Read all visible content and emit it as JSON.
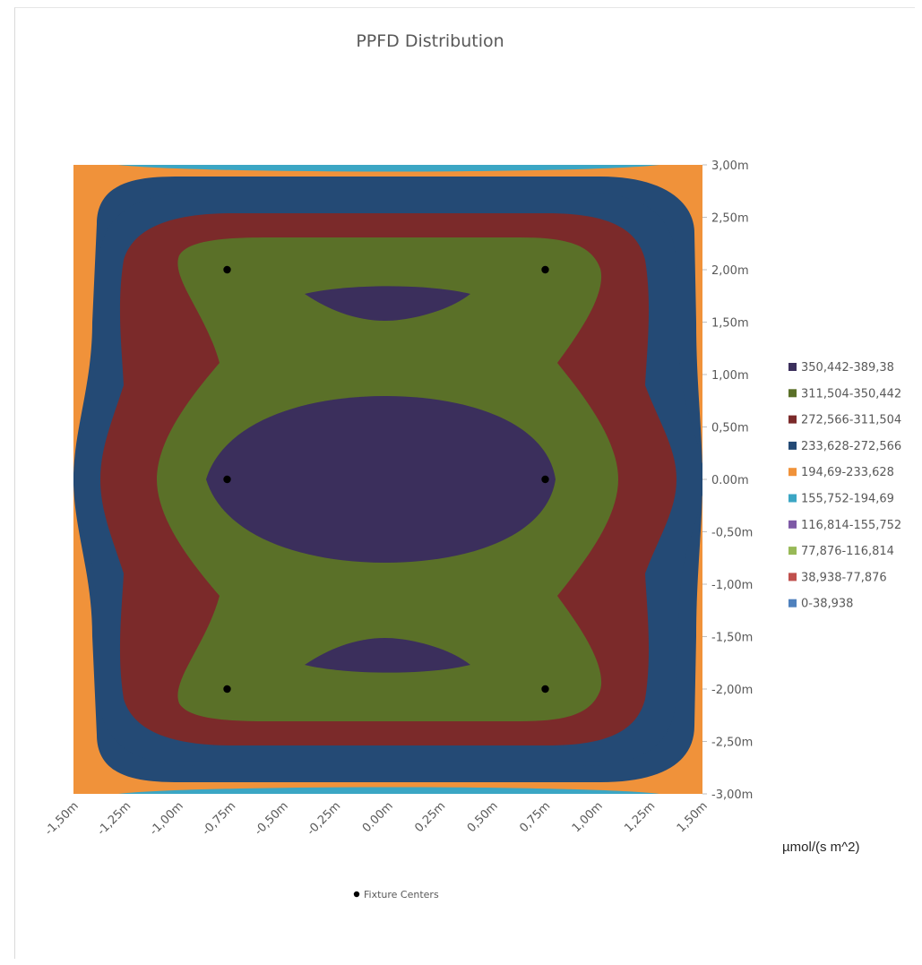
{
  "chart_data": {
    "type": "contour",
    "title": "PPFD Distribution",
    "unit_label": "µmol/(s m^2)",
    "x_ticks": [
      "-1,50m",
      "-1,25m",
      "-1,00m",
      "-0,75m",
      "-0,50m",
      "-0,25m",
      "0.00m",
      "0,25m",
      "0,50m",
      "0,75m",
      "1,00m",
      "1,25m",
      "1,50m"
    ],
    "y_ticks": [
      "3,00m",
      "2,50m",
      "2,00m",
      "1,50m",
      "1,00m",
      "0,50m",
      "0.00m",
      "-0,50m",
      "-1,00m",
      "-1,50m",
      "-2,00m",
      "-2,50m",
      "-3,00m"
    ],
    "xlim": [
      -1.5,
      1.5
    ],
    "ylim": [
      -3.0,
      3.0
    ],
    "legend_position": "right",
    "levels": [
      {
        "label": "350,442-389,38",
        "color": "#3b2f5c"
      },
      {
        "label": "311,504-350,442",
        "color": "#5a7028"
      },
      {
        "label": "272,566-311,504",
        "color": "#7b2a2a"
      },
      {
        "label": "233,628-272,566",
        "color": "#244a75"
      },
      {
        "label": "194,69-233,628",
        "color": "#f0923a"
      },
      {
        "label": "155,752-194,69",
        "color": "#3ba6c4"
      },
      {
        "label": "116,814-155,752",
        "color": "#7e5aa6"
      },
      {
        "label": "77,876-116,814",
        "color": "#98b957"
      },
      {
        "label": "38,938-77,876",
        "color": "#c0504d"
      },
      {
        "label": "0-38,938",
        "color": "#4f81bd"
      }
    ],
    "fixtures": {
      "legend_label": "Fixture Centers",
      "color": "#000000",
      "points": [
        {
          "x": -0.75,
          "y": 2.0
        },
        {
          "x": 0.75,
          "y": 2.0
        },
        {
          "x": -0.75,
          "y": 0.0
        },
        {
          "x": 0.75,
          "y": 0.0
        },
        {
          "x": -0.75,
          "y": -2.0
        },
        {
          "x": 0.75,
          "y": -2.0
        }
      ]
    }
  }
}
